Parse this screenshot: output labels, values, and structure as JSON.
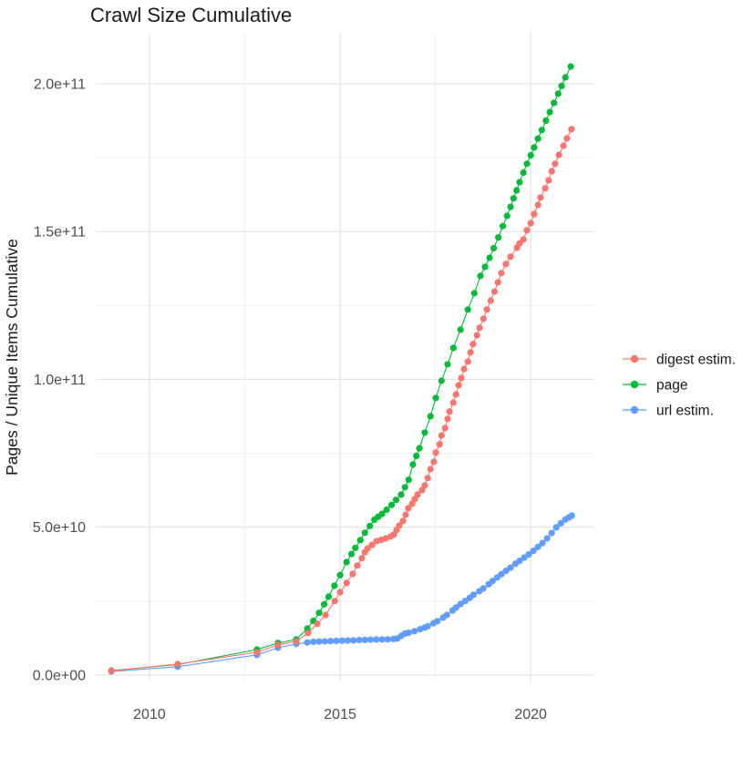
{
  "title": "Crawl Size Cumulative",
  "axes": {
    "y_label": "Pages / Unique Items Cumulative",
    "y_ticks": [
      {
        "label": "0.0e+00",
        "value": 0
      },
      {
        "label": "5.0e+10",
        "value": 50
      },
      {
        "label": "1.0e+11",
        "value": 100
      },
      {
        "label": "1.5e+11",
        "value": 150
      },
      {
        "label": "2.0e+11",
        "value": 200
      }
    ],
    "y_minor": [
      25,
      75,
      125,
      175
    ],
    "x_ticks": [
      {
        "label": "2010",
        "value": 2010
      },
      {
        "label": "2015",
        "value": 2015
      },
      {
        "label": "2020",
        "value": 2020
      }
    ],
    "x_minor": [
      2012.5,
      2017.5
    ]
  },
  "legend": [
    {
      "label": "digest estim.",
      "color": "#F8766D"
    },
    {
      "label": "page",
      "color": "#00BA38"
    },
    {
      "label": "url estim.",
      "color": "#619CFF"
    }
  ],
  "colors": {
    "grid_major": "#e3e3e3",
    "grid_minor": "#ececec",
    "tick_label": "#4d4d4d",
    "text": "#1a1a1a",
    "background": "#ffffff"
  },
  "chart_data": {
    "type": "line",
    "title": "Crawl Size Cumulative",
    "xlabel": "",
    "ylabel": "Pages / Unique Items Cumulative",
    "x_unit": "year",
    "y_unit": "count (values given in billions, 1e9)",
    "xlim": [
      2008.59,
      2021.67
    ],
    "ylim_e9": [
      -2.2,
      217.2
    ],
    "grid": true,
    "legend_position": "right",
    "marker": "point",
    "series": [
      {
        "name": "digest estim.",
        "color": "#F8766D",
        "points": [
          [
            2009.0,
            1.4
          ],
          [
            2010.74,
            3.7
          ],
          [
            2012.82,
            7.7
          ],
          [
            2013.37,
            10.2
          ],
          [
            2013.85,
            11.4
          ],
          [
            2014.16,
            14.2
          ],
          [
            2014.4,
            17.3
          ],
          [
            2014.62,
            20.3
          ],
          [
            2014.86,
            25.0
          ],
          [
            2015.0,
            28.0
          ],
          [
            2015.17,
            31.1
          ],
          [
            2015.33,
            34.2
          ],
          [
            2015.45,
            37.0
          ],
          [
            2015.57,
            39.5
          ],
          [
            2015.65,
            41.5
          ],
          [
            2015.72,
            42.8
          ],
          [
            2015.84,
            44.0
          ],
          [
            2015.96,
            45.3
          ],
          [
            2016.08,
            45.7
          ],
          [
            2016.2,
            46.2
          ],
          [
            2016.32,
            46.8
          ],
          [
            2016.41,
            47.5
          ],
          [
            2016.48,
            49.0
          ],
          [
            2016.55,
            50.5
          ],
          [
            2016.65,
            52.1
          ],
          [
            2016.72,
            54.2
          ],
          [
            2016.79,
            56.4
          ],
          [
            2016.89,
            57.9
          ],
          [
            2016.96,
            59.5
          ],
          [
            2017.03,
            61.0
          ],
          [
            2017.15,
            62.5
          ],
          [
            2017.22,
            64.1
          ],
          [
            2017.3,
            66.6
          ],
          [
            2017.37,
            69.6
          ],
          [
            2017.46,
            72.1
          ],
          [
            2017.51,
            75.2
          ],
          [
            2017.61,
            78.0
          ],
          [
            2017.66,
            81.0
          ],
          [
            2017.75,
            83.5
          ],
          [
            2017.82,
            86.6
          ],
          [
            2017.87,
            89.1
          ],
          [
            2017.97,
            92.1
          ],
          [
            2018.04,
            94.9
          ],
          [
            2018.11,
            98.0
          ],
          [
            2018.18,
            100.4
          ],
          [
            2018.25,
            103.5
          ],
          [
            2018.35,
            106.0
          ],
          [
            2018.42,
            109.1
          ],
          [
            2018.49,
            111.9
          ],
          [
            2018.59,
            114.9
          ],
          [
            2018.66,
            117.4
          ],
          [
            2018.76,
            120.5
          ],
          [
            2018.85,
            123.6
          ],
          [
            2018.95,
            126.6
          ],
          [
            2019.05,
            129.7
          ],
          [
            2019.14,
            132.8
          ],
          [
            2019.23,
            135.9
          ],
          [
            2019.35,
            139.0
          ],
          [
            2019.47,
            141.5
          ],
          [
            2019.64,
            144.5
          ],
          [
            2019.71,
            146.0
          ],
          [
            2019.81,
            147.3
          ],
          [
            2019.9,
            150.4
          ],
          [
            2020.0,
            152.8
          ],
          [
            2020.09,
            155.9
          ],
          [
            2020.19,
            159.0
          ],
          [
            2020.26,
            161.5
          ],
          [
            2020.38,
            164.6
          ],
          [
            2020.47,
            167.3
          ],
          [
            2020.55,
            170.4
          ],
          [
            2020.64,
            172.9
          ],
          [
            2020.74,
            175.9
          ],
          [
            2020.86,
            179.0
          ],
          [
            2020.95,
            181.5
          ],
          [
            2021.07,
            184.6
          ]
        ]
      },
      {
        "name": "page",
        "color": "#00BA38",
        "points": [
          [
            2009.0,
            1.5
          ],
          [
            2010.74,
            3.5
          ],
          [
            2012.82,
            8.6
          ],
          [
            2013.37,
            10.8
          ],
          [
            2013.85,
            12.0
          ],
          [
            2014.14,
            15.7
          ],
          [
            2014.3,
            18.3
          ],
          [
            2014.45,
            21.0
          ],
          [
            2014.58,
            23.9
          ],
          [
            2014.7,
            26.5
          ],
          [
            2014.85,
            30.2
          ],
          [
            2015.0,
            33.8
          ],
          [
            2015.17,
            38.2
          ],
          [
            2015.3,
            40.9
          ],
          [
            2015.4,
            43.0
          ],
          [
            2015.53,
            45.6
          ],
          [
            2015.65,
            48.1
          ],
          [
            2015.78,
            50.4
          ],
          [
            2015.9,
            52.5
          ],
          [
            2016.0,
            53.5
          ],
          [
            2016.1,
            54.5
          ],
          [
            2016.22,
            55.9
          ],
          [
            2016.35,
            57.5
          ],
          [
            2016.47,
            59.2
          ],
          [
            2016.6,
            61.0
          ],
          [
            2016.7,
            63.5
          ],
          [
            2016.8,
            66.0
          ],
          [
            2016.91,
            71.2
          ],
          [
            2017.0,
            74.1
          ],
          [
            2017.08,
            76.7
          ],
          [
            2017.22,
            82.0
          ],
          [
            2017.37,
            87.5
          ],
          [
            2017.51,
            93.7
          ],
          [
            2017.66,
            99.5
          ],
          [
            2017.82,
            105.1
          ],
          [
            2017.97,
            110.6
          ],
          [
            2018.16,
            116.8
          ],
          [
            2018.35,
            123.6
          ],
          [
            2018.52,
            129.1
          ],
          [
            2018.68,
            135.0
          ],
          [
            2018.8,
            138.0
          ],
          [
            2018.92,
            141.1
          ],
          [
            2019.03,
            144.4
          ],
          [
            2019.15,
            148.0
          ],
          [
            2019.27,
            151.8
          ],
          [
            2019.38,
            155.3
          ],
          [
            2019.47,
            158.3
          ],
          [
            2019.55,
            161.2
          ],
          [
            2019.63,
            163.9
          ],
          [
            2019.71,
            166.7
          ],
          [
            2019.81,
            169.9
          ],
          [
            2019.9,
            172.9
          ],
          [
            2020.0,
            175.8
          ],
          [
            2020.09,
            178.4
          ],
          [
            2020.19,
            181.4
          ],
          [
            2020.29,
            184.3
          ],
          [
            2020.4,
            187.5
          ],
          [
            2020.5,
            190.4
          ],
          [
            2020.61,
            193.5
          ],
          [
            2020.72,
            196.6
          ],
          [
            2020.81,
            199.2
          ],
          [
            2020.91,
            202.1
          ],
          [
            2021.05,
            205.8
          ]
        ]
      },
      {
        "name": "url estim.",
        "color": "#619CFF",
        "points": [
          [
            2009.0,
            1.2
          ],
          [
            2010.74,
            2.8
          ],
          [
            2012.82,
            6.8
          ],
          [
            2013.37,
            9.2
          ],
          [
            2013.85,
            10.5
          ],
          [
            2014.14,
            11.0
          ],
          [
            2014.3,
            11.2
          ],
          [
            2014.45,
            11.3
          ],
          [
            2014.6,
            11.35
          ],
          [
            2014.75,
            11.45
          ],
          [
            2014.9,
            11.5
          ],
          [
            2015.05,
            11.6
          ],
          [
            2015.2,
            11.65
          ],
          [
            2015.35,
            11.7
          ],
          [
            2015.5,
            11.8
          ],
          [
            2015.65,
            11.85
          ],
          [
            2015.8,
            11.95
          ],
          [
            2015.95,
            12.0
          ],
          [
            2016.1,
            12.0
          ],
          [
            2016.25,
            12.05
          ],
          [
            2016.4,
            12.15
          ],
          [
            2016.5,
            12.3
          ],
          [
            2016.6,
            13.2
          ],
          [
            2016.7,
            14.0
          ],
          [
            2016.8,
            14.3
          ],
          [
            2016.95,
            14.8
          ],
          [
            2017.1,
            15.5
          ],
          [
            2017.22,
            16.0
          ],
          [
            2017.3,
            16.5
          ],
          [
            2017.45,
            17.5
          ],
          [
            2017.55,
            18.2
          ],
          [
            2017.7,
            19.4
          ],
          [
            2017.8,
            20.3
          ],
          [
            2017.95,
            21.8
          ],
          [
            2018.04,
            22.8
          ],
          [
            2018.16,
            24.0
          ],
          [
            2018.28,
            25.0
          ],
          [
            2018.4,
            26.1
          ],
          [
            2018.5,
            27.1
          ],
          [
            2018.65,
            28.3
          ],
          [
            2018.76,
            29.3
          ],
          [
            2018.9,
            30.7
          ],
          [
            2019.0,
            31.8
          ],
          [
            2019.12,
            33.0
          ],
          [
            2019.23,
            34.1
          ],
          [
            2019.35,
            35.2
          ],
          [
            2019.47,
            36.3
          ],
          [
            2019.6,
            37.6
          ],
          [
            2019.71,
            38.6
          ],
          [
            2019.83,
            39.7
          ],
          [
            2019.95,
            40.8
          ],
          [
            2020.07,
            42.0
          ],
          [
            2020.19,
            43.3
          ],
          [
            2020.31,
            44.6
          ],
          [
            2020.43,
            46.2
          ],
          [
            2020.55,
            48.0
          ],
          [
            2020.67,
            49.9
          ],
          [
            2020.79,
            51.3
          ],
          [
            2020.91,
            52.6
          ],
          [
            2021.0,
            53.3
          ],
          [
            2021.08,
            53.9
          ]
        ]
      }
    ]
  }
}
